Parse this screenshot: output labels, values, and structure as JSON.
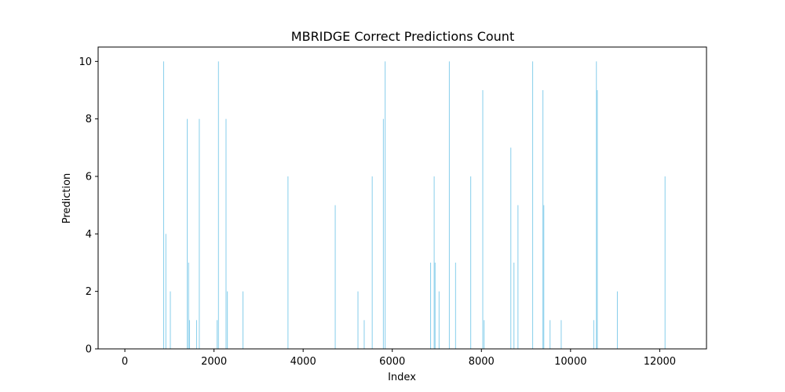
{
  "chart_data": {
    "type": "bar",
    "title": "MBRIDGE Correct Predictions Count",
    "xlabel": "Index",
    "ylabel": "Prediction",
    "xlim": [
      -600,
      13050
    ],
    "ylim": [
      0,
      10.5
    ],
    "xticks": [
      0,
      2000,
      4000,
      6000,
      8000,
      10000,
      12000
    ],
    "xtick_labels": [
      "0",
      "2000",
      "4000",
      "6000",
      "8000",
      "10000",
      "12000"
    ],
    "yticks": [
      0,
      2,
      4,
      6,
      8,
      10
    ],
    "ytick_labels": [
      "0",
      "2",
      "4",
      "6",
      "8",
      "10"
    ],
    "bar_color": "#87ceeb",
    "grid": false,
    "series": [
      {
        "x": [
          870,
          920,
          1020,
          1400,
          1430,
          1450,
          1610,
          1670,
          2070,
          2100,
          2270,
          2300,
          2650,
          3660,
          4720,
          5230,
          5370,
          5550,
          5800,
          5840,
          6860,
          6940,
          6960,
          7050,
          7280,
          7420,
          7760,
          8030,
          8060,
          8660,
          8730,
          8820,
          9150,
          9380,
          9400,
          9540,
          9790,
          10520,
          10580,
          10600,
          11050,
          12120
        ],
        "values": [
          10,
          4,
          2,
          8,
          3,
          1,
          1,
          8,
          1,
          10,
          8,
          2,
          2,
          6,
          5,
          2,
          1,
          6,
          8,
          10,
          3,
          6,
          3,
          2,
          10,
          3,
          6,
          9,
          1,
          7,
          3,
          5,
          10,
          9,
          5,
          1,
          1,
          1,
          10,
          9,
          2,
          6
        ]
      }
    ]
  }
}
